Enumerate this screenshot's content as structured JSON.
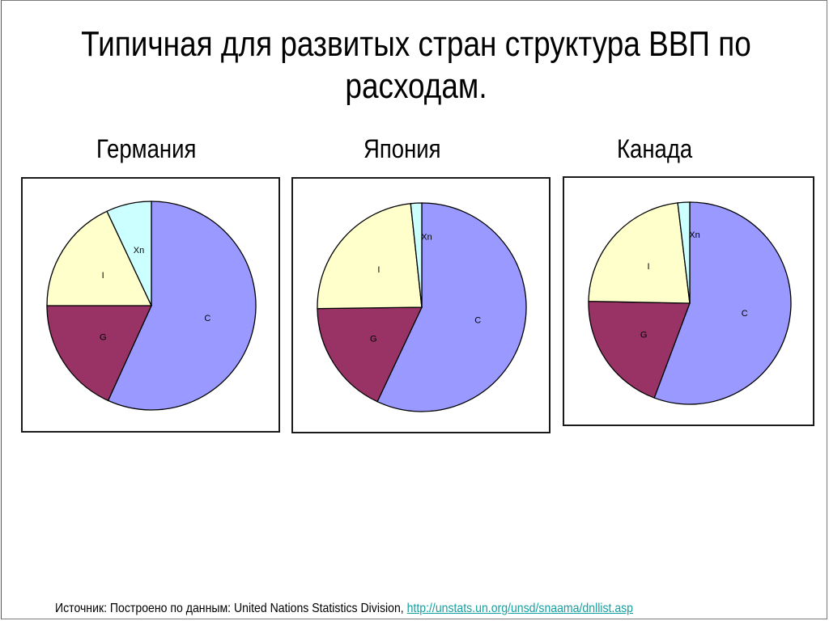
{
  "slide": {
    "title_line1": "Типичная для развитых стран структура ВВП по",
    "title_line2": "расходам.",
    "source_text": "Источник: Построено по  данным: United Nations Statistics Division, ",
    "source_link": "http://unstats.un.org/unsd/snaama/dnllist.asp"
  },
  "colors": {
    "C": "#9999FF",
    "G": "#993366",
    "I": "#FFFFCC",
    "Xn": "#CCFFFF"
  },
  "chart_data": [
    {
      "type": "pie",
      "title": "Германия",
      "categories": [
        "C",
        "G",
        "I",
        "Xn"
      ],
      "values": [
        56.8,
        18.2,
        18.0,
        7.0
      ],
      "start_angle": 0,
      "direction": "clockwise",
      "legend": "none",
      "labels_inside": true
    },
    {
      "type": "pie",
      "title": "Япония",
      "categories": [
        "C",
        "G",
        "I",
        "Xn"
      ],
      "values": [
        57.0,
        17.8,
        23.5,
        1.7
      ],
      "start_angle": 0,
      "direction": "clockwise",
      "legend": "none",
      "labels_inside": true
    },
    {
      "type": "pie",
      "title": "Канада",
      "categories": [
        "C",
        "G",
        "I",
        "Xn"
      ],
      "values": [
        55.7,
        19.6,
        22.8,
        1.9
      ],
      "start_angle": 0,
      "direction": "clockwise",
      "legend": "none",
      "labels_inside": true
    }
  ]
}
